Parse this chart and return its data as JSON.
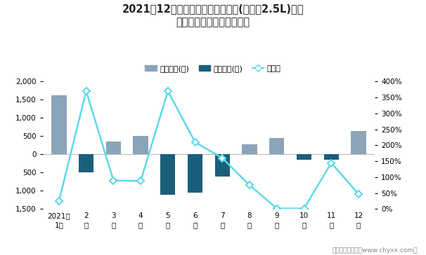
{
  "title_line1": "2021年12月阿特兹旗下最畅销轿车(阿特兹2.5L)近一",
  "title_line2": "年库存情况及产销率统计图",
  "months": [
    "2021年\n1月",
    "2\n月",
    "3\n月",
    "4\n月",
    "5\n月",
    "6\n月",
    "7\n月",
    "8\n月",
    "9\n月",
    "10\n月",
    "11\n月",
    "12\n月"
  ],
  "jiYa": [
    1620,
    0,
    350,
    500,
    0,
    0,
    0,
    270,
    450,
    0,
    0,
    650
  ],
  "qingCang": [
    0,
    -500,
    0,
    0,
    -1100,
    -1050,
    -600,
    0,
    0,
    -150,
    -150,
    0
  ],
  "chanXiaoLv": [
    0.25,
    3.7,
    0.9,
    0.88,
    3.7,
    2.1,
    1.6,
    0.75,
    0.02,
    0.02,
    1.45,
    0.47
  ],
  "jiya_color": "#8ca4b8",
  "qingcang_color": "#1a5f7a",
  "line_color": "#5dd9e8",
  "ylim_left": [
    -1500,
    2000
  ],
  "ylim_right": [
    0,
    4.0
  ],
  "yticks_left": [
    -1500,
    -1000,
    -500,
    0,
    500,
    1000,
    1500,
    2000
  ],
  "yticks_right": [
    0.0,
    0.5,
    1.0,
    1.5,
    2.0,
    2.5,
    3.0,
    3.5,
    4.0
  ],
  "ytick_labels_right": [
    "0%",
    "50%",
    "100%",
    "150%",
    "200%",
    "250%",
    "300%",
    "350%",
    "400%"
  ],
  "ytick_labels_left": [
    "1,500",
    "1,000",
    "500",
    "0",
    "500",
    "1,000",
    "1,500",
    "2,000"
  ],
  "legend_jiya": "积压库存(辆)",
  "legend_qingcang": "清仓库存(辆)",
  "legend_chanxiaolv": "产销率",
  "footer": "制图：智研咨询（www.chyxx.com）",
  "background_color": "#ffffff",
  "zero_line_color": "#bbbbbb"
}
